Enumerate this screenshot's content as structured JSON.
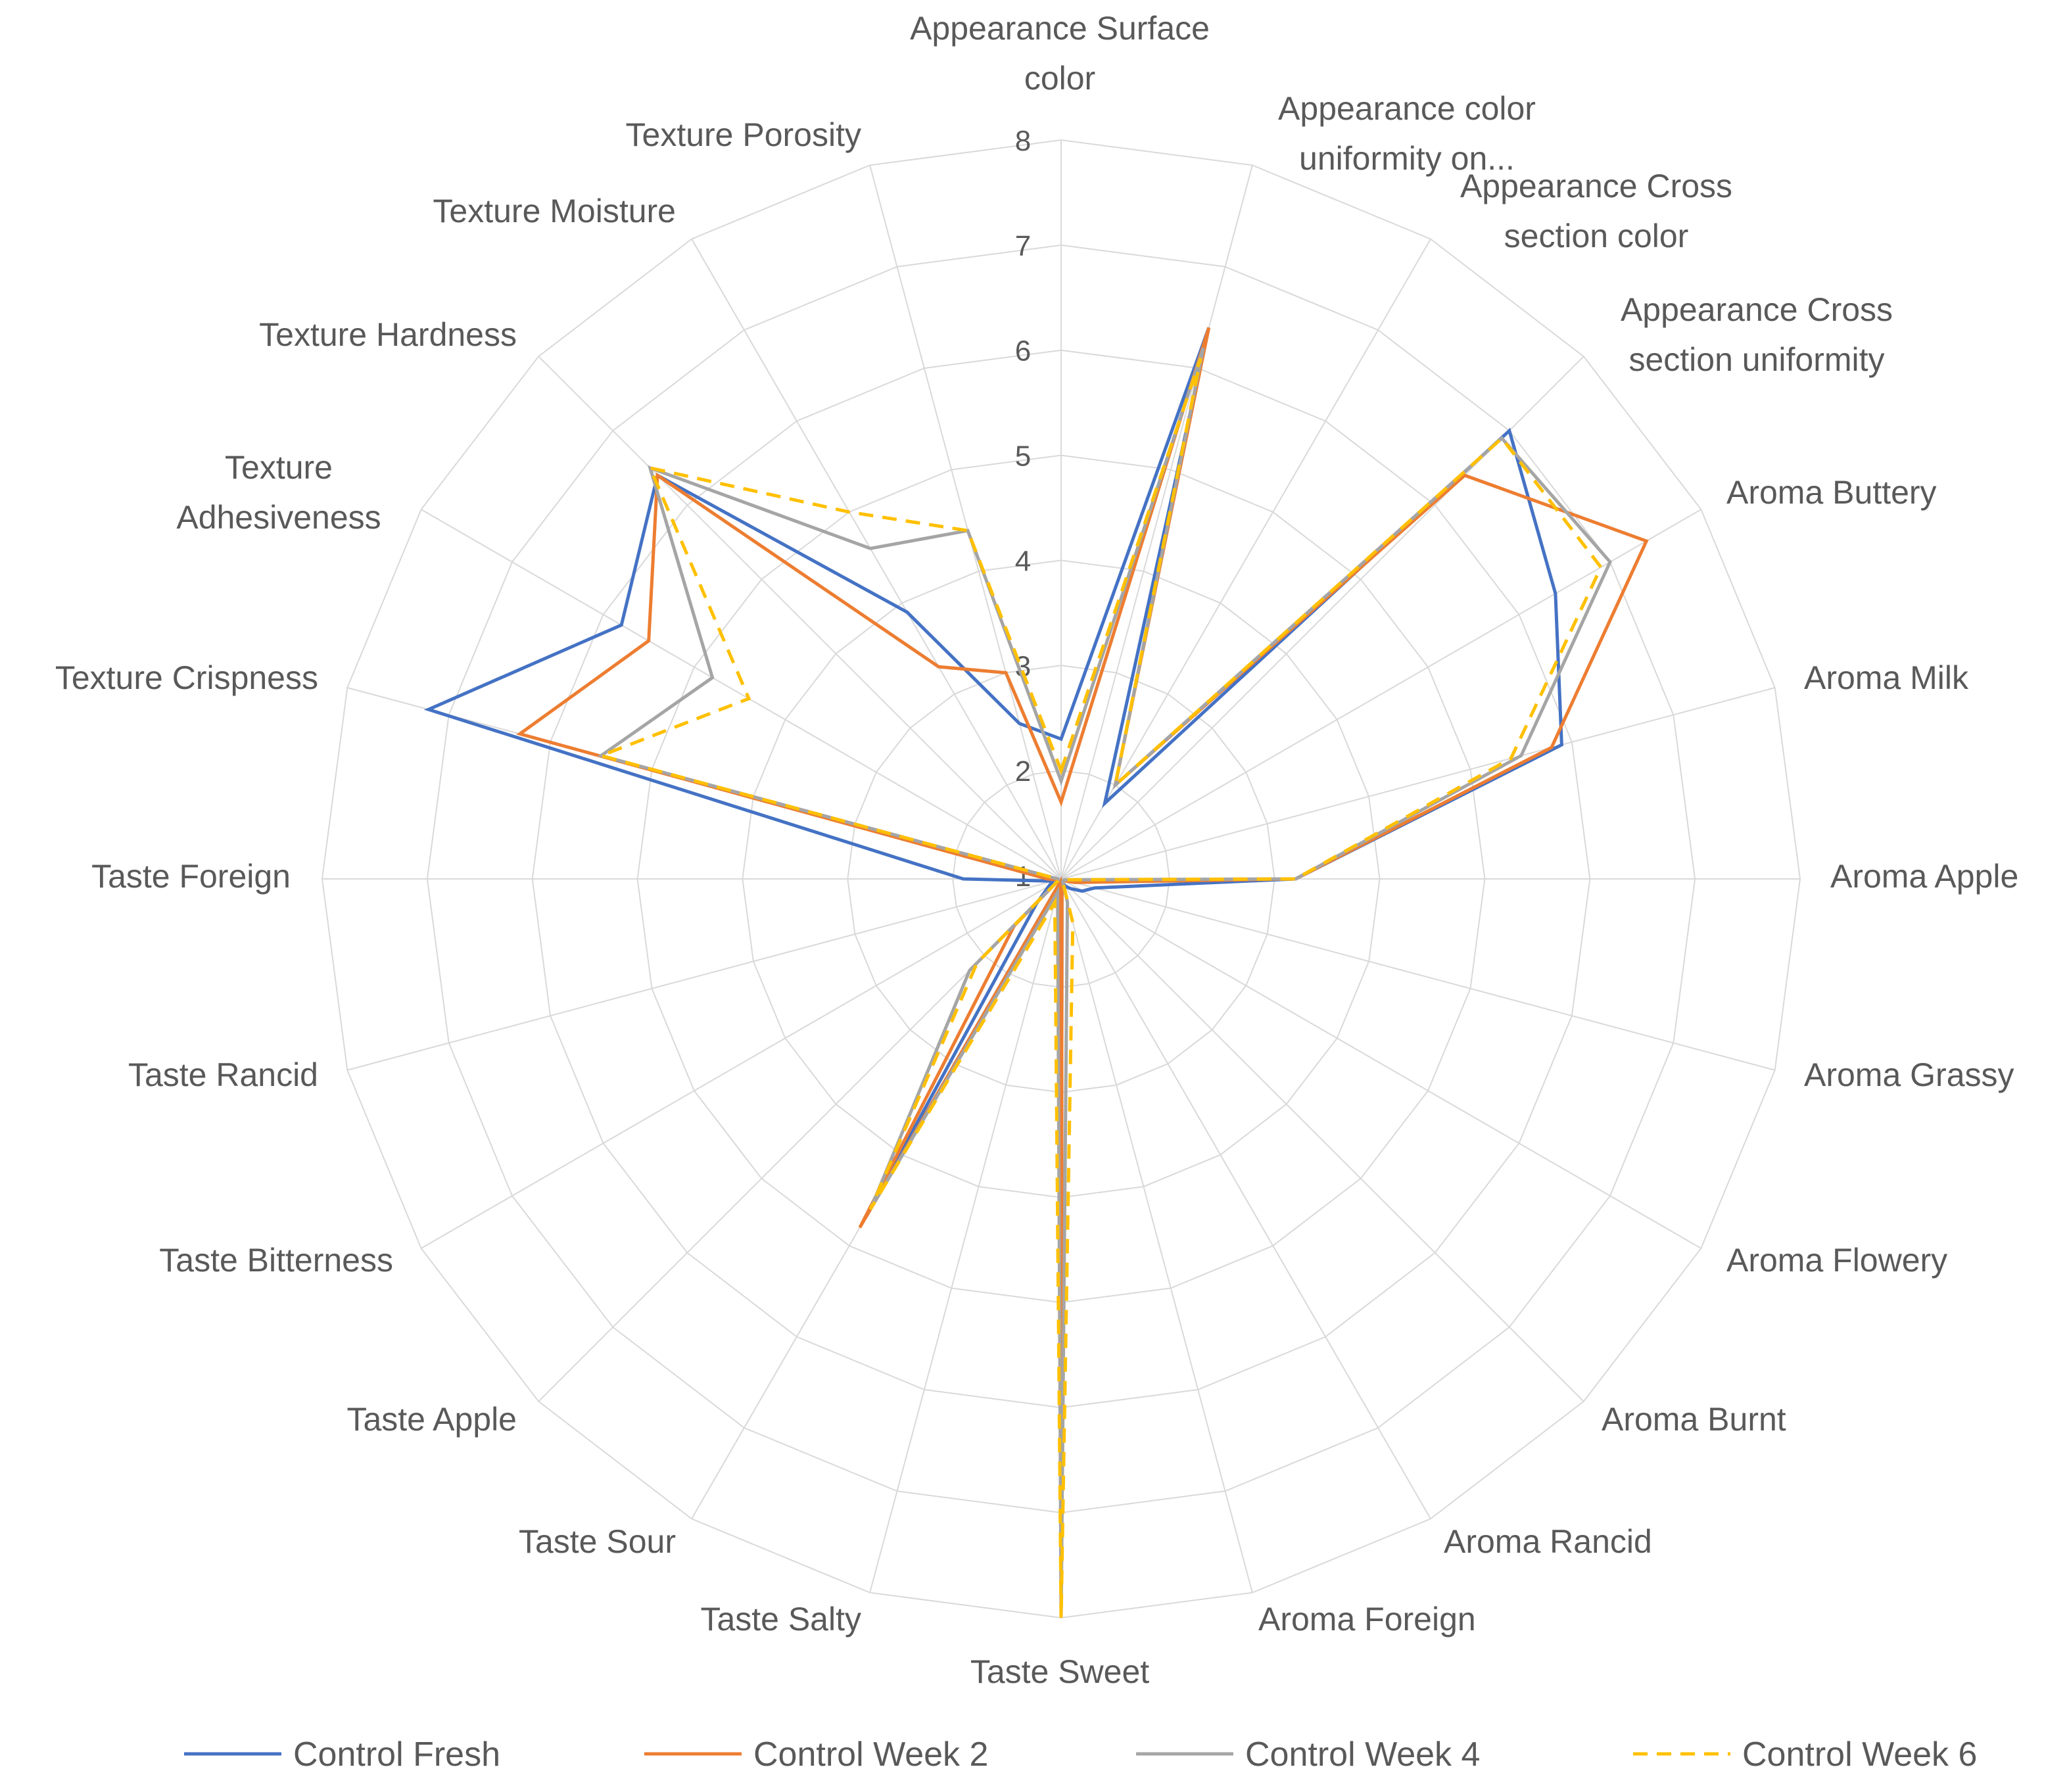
{
  "chart_data": {
    "type": "radar",
    "title": "",
    "categories": [
      "Appearance Surface color",
      "Appearance color uniformity on...",
      "Appearance Cross section color",
      "Appearance Cross section uniformity",
      "Aroma Buttery",
      "Aroma Milk",
      "Aroma Apple",
      "Aroma Grassy",
      "Aroma Flowery",
      "Aroma Burnt",
      "Aroma Rancid",
      "Aroma Foreign",
      "Taste Sweet",
      "Taste Salty",
      "Taste Sour",
      "Taste Apple",
      "Taste Bitterness",
      "Taste Rancid",
      "Taste Foreign",
      "Texture Crispness",
      "Texture Adhesiveness",
      "Texture Hardness",
      "Texture Moisture",
      "Texture Porosity"
    ],
    "axis": {
      "min": 1,
      "max": 8,
      "ticks": [
        "1",
        "2",
        "3",
        "4",
        "5",
        "6",
        "7",
        "8"
      ]
    },
    "series": [
      {
        "name": "Control Fresh",
        "color": "#4472C4",
        "dash": "solid",
        "values": [
          2.3,
          6.4,
          1.8,
          7.0,
          6.4,
          5.9,
          3.2,
          1.3,
          1.2,
          1.1,
          1.05,
          1.0,
          8.0,
          1.0,
          4.7,
          1.3,
          1.1,
          1.05,
          1.9,
          7.2,
          5.8,
          6.4,
          3.9,
          2.5
        ]
      },
      {
        "name": "Control Week 2",
        "color": "#ED7D31",
        "dash": "solid",
        "values": [
          1.7,
          6.4,
          2.0,
          6.4,
          7.4,
          5.8,
          3.2,
          1.1,
          1.0,
          1.0,
          1.0,
          1.0,
          8.0,
          1.0,
          4.8,
          1.6,
          1.0,
          1.0,
          1.1,
          6.3,
          5.5,
          6.4,
          3.3,
          3.0
        ]
      },
      {
        "name": "Control Week 4",
        "color": "#A5A5A5",
        "dash": "solid",
        "values": [
          1.9,
          6.2,
          2.0,
          6.9,
          7.0,
          5.5,
          3.2,
          1.0,
          1.0,
          1.0,
          1.0,
          1.2,
          8.0,
          1.1,
          4.6,
          2.2,
          1.0,
          1.0,
          1.0,
          5.5,
          4.8,
          6.5,
          4.6,
          4.4
        ]
      },
      {
        "name": "Control Week 6",
        "color": "#FFC000",
        "dash": "dashed",
        "values": [
          2.0,
          6.1,
          2.0,
          6.9,
          6.9,
          5.4,
          3.2,
          1.0,
          1.0,
          1.0,
          1.0,
          1.4,
          8.0,
          1.2,
          4.6,
          2.1,
          1.0,
          1.0,
          1.0,
          5.5,
          4.4,
          6.5,
          5.0,
          4.4
        ]
      }
    ],
    "legend": {
      "position": "bottom"
    },
    "grid": true
  }
}
